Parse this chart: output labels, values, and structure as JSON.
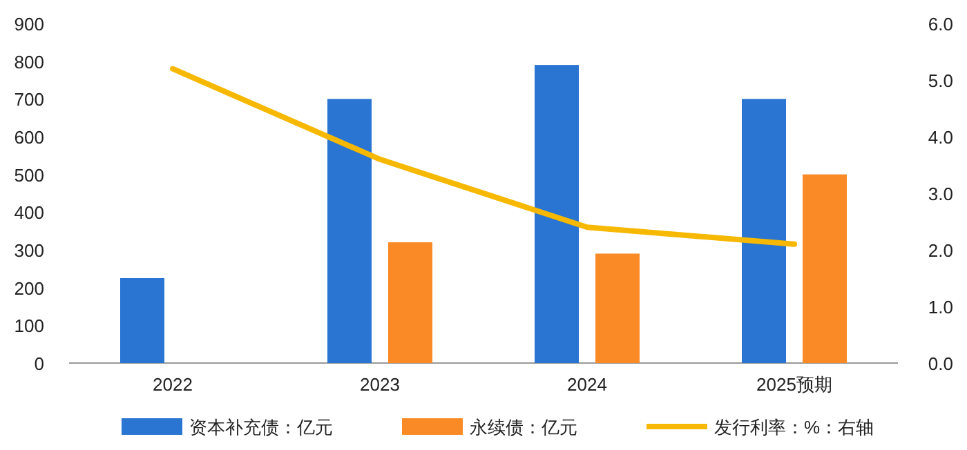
{
  "chart_data": {
    "type": "bar",
    "categories": [
      "2022",
      "2023",
      "2024",
      "2025预期"
    ],
    "series": [
      {
        "name": "资本补充债：亿元",
        "color": "#2a74d2",
        "values": [
          225,
          700,
          790,
          700
        ]
      },
      {
        "name": "永续债：亿元",
        "color": "#fa8a26",
        "values": [
          null,
          320,
          290,
          500
        ]
      },
      {
        "name": "发行利率：%：右轴",
        "type": "line",
        "axis": "y2",
        "color": "#f6b800",
        "values": [
          5.2,
          3.6,
          2.4,
          2.1
        ]
      }
    ],
    "ylim": [
      0,
      900
    ],
    "yticks": [
      0,
      100,
      200,
      300,
      400,
      500,
      600,
      700,
      800,
      900
    ],
    "y2lim": [
      0,
      6
    ],
    "y2ticks": [
      {
        "value": 0,
        "label": "0.0"
      },
      {
        "value": 1,
        "label": "1.0"
      },
      {
        "value": 2,
        "label": "2.0"
      },
      {
        "value": 3,
        "label": "3.0"
      },
      {
        "value": 4,
        "label": "4.0"
      },
      {
        "value": 5,
        "label": "5.0"
      },
      {
        "value": 6,
        "label": "6.0"
      }
    ],
    "legend": "bottom",
    "grid": false
  }
}
